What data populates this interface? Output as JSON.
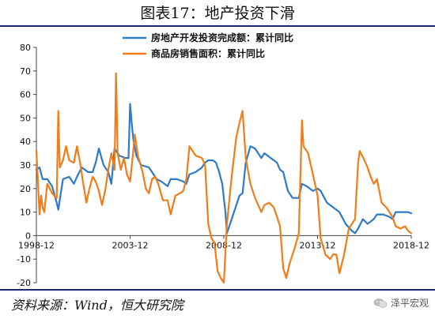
{
  "title": "图表17：地产投资下滑",
  "source": "资料来源：Wind，恒大研究院",
  "watermark": "泽平宏观",
  "chart_data": {
    "type": "line",
    "title": "图表17：地产投资下滑",
    "xlabel": "",
    "ylabel": "",
    "ylim": [
      -20,
      80
    ],
    "yticks": [
      -20,
      -10,
      0,
      10,
      20,
      30,
      40,
      50,
      60,
      70,
      80
    ],
    "xlim": [
      "1998-12",
      "2018-12"
    ],
    "xtick_labels": [
      "1998-12",
      "2003-12",
      "2008-12",
      "2013-12",
      "2018-12"
    ],
    "grid": false,
    "legend": "top-center",
    "series": [
      {
        "name": "房地产开发投资完成额：累计同比",
        "color": "#2f7ac6",
        "points": [
          [
            "1998-12",
            28
          ],
          [
            "1999-02",
            29
          ],
          [
            "1999-04",
            24
          ],
          [
            "1999-07",
            24
          ],
          [
            "1999-10",
            21
          ],
          [
            "2000-01",
            14
          ],
          [
            "2000-02",
            11
          ],
          [
            "2000-05",
            24
          ],
          [
            "2000-09",
            25
          ],
          [
            "2000-12",
            22
          ],
          [
            "2001-02",
            25
          ],
          [
            "2001-05",
            29
          ],
          [
            "2001-09",
            27
          ],
          [
            "2001-12",
            27
          ],
          [
            "2002-02",
            31
          ],
          [
            "2002-04",
            37
          ],
          [
            "2002-07",
            30
          ],
          [
            "2002-10",
            27
          ],
          [
            "2002-12",
            22
          ],
          [
            "2003-02",
            37
          ],
          [
            "2003-05",
            34
          ],
          [
            "2003-09",
            33
          ],
          [
            "2003-11",
            33
          ],
          [
            "2003-12",
            56
          ],
          [
            "2004-01",
            48
          ],
          [
            "2004-02",
            41
          ],
          [
            "2004-04",
            34
          ],
          [
            "2004-07",
            30
          ],
          [
            "2004-12",
            29
          ],
          [
            "2005-02",
            27
          ],
          [
            "2005-05",
            24
          ],
          [
            "2005-08",
            23
          ],
          [
            "2005-12",
            21
          ],
          [
            "2006-02",
            24
          ],
          [
            "2006-06",
            24
          ],
          [
            "2006-10",
            23
          ],
          [
            "2006-12",
            22
          ],
          [
            "2007-02",
            26
          ],
          [
            "2007-06",
            27
          ],
          [
            "2007-10",
            29
          ],
          [
            "2007-12",
            31
          ],
          [
            "2008-02",
            32
          ],
          [
            "2008-05",
            32
          ],
          [
            "2008-07",
            31
          ],
          [
            "2008-09",
            27
          ],
          [
            "2008-11",
            22
          ],
          [
            "2009-01",
            10
          ],
          [
            "2009-02",
            1
          ],
          [
            "2009-04",
            5
          ],
          [
            "2009-07",
            11
          ],
          [
            "2009-10",
            17
          ],
          [
            "2009-12",
            18
          ],
          [
            "2010-02",
            31
          ],
          [
            "2010-05",
            38
          ],
          [
            "2010-08",
            37
          ],
          [
            "2010-12",
            33
          ],
          [
            "2011-02",
            35
          ],
          [
            "2011-06",
            33
          ],
          [
            "2011-10",
            31
          ],
          [
            "2011-12",
            28
          ],
          [
            "2012-02",
            27
          ],
          [
            "2012-05",
            19
          ],
          [
            "2012-08",
            16
          ],
          [
            "2012-12",
            16
          ],
          [
            "2013-02",
            22
          ],
          [
            "2013-05",
            21
          ],
          [
            "2013-09",
            19
          ],
          [
            "2013-12",
            20
          ],
          [
            "2014-02",
            19
          ],
          [
            "2014-06",
            14
          ],
          [
            "2014-10",
            12
          ],
          [
            "2014-12",
            11
          ],
          [
            "2015-02",
            10
          ],
          [
            "2015-06",
            5
          ],
          [
            "2015-10",
            2
          ],
          [
            "2015-12",
            1
          ],
          [
            "2016-02",
            3
          ],
          [
            "2016-05",
            7
          ],
          [
            "2016-08",
            5
          ],
          [
            "2016-12",
            7
          ],
          [
            "2017-02",
            9
          ],
          [
            "2017-06",
            9
          ],
          [
            "2017-10",
            8
          ],
          [
            "2017-12",
            7
          ],
          [
            "2018-02",
            10
          ],
          [
            "2018-05",
            10
          ],
          [
            "2018-08",
            10
          ],
          [
            "2018-10",
            10
          ],
          [
            "2018-12",
            9.5
          ]
        ]
      },
      {
        "name": "商品房销售面积：累计同比",
        "color": "#ee7d1a",
        "points": [
          [
            "1998-12",
            36
          ],
          [
            "1999-02",
            9
          ],
          [
            "1999-03",
            17
          ],
          [
            "1999-04",
            12
          ],
          [
            "1999-05",
            10
          ],
          [
            "1999-07",
            22
          ],
          [
            "1999-10",
            18
          ],
          [
            "2000-01",
            16
          ],
          [
            "2000-02",
            53
          ],
          [
            "2000-03",
            29
          ],
          [
            "2000-05",
            32
          ],
          [
            "2000-07",
            38
          ],
          [
            "2000-09",
            32
          ],
          [
            "2000-12",
            31
          ],
          [
            "2001-02",
            38
          ],
          [
            "2001-04",
            31
          ],
          [
            "2001-06",
            22
          ],
          [
            "2001-08",
            14
          ],
          [
            "2001-10",
            20
          ],
          [
            "2001-12",
            25
          ],
          [
            "2002-02",
            23
          ],
          [
            "2002-04",
            19
          ],
          [
            "2002-06",
            13
          ],
          [
            "2002-08",
            19
          ],
          [
            "2002-10",
            28
          ],
          [
            "2002-12",
            35
          ],
          [
            "2003-02",
            28
          ],
          [
            "2003-03",
            69
          ],
          [
            "2003-04",
            35
          ],
          [
            "2003-06",
            28
          ],
          [
            "2003-08",
            33
          ],
          [
            "2003-10",
            26
          ],
          [
            "2003-12",
            23
          ],
          [
            "2004-02",
            36
          ],
          [
            "2004-03",
            43
          ],
          [
            "2004-05",
            34
          ],
          [
            "2004-08",
            27
          ],
          [
            "2004-10",
            20
          ],
          [
            "2004-12",
            18
          ],
          [
            "2005-02",
            24
          ],
          [
            "2005-04",
            25
          ],
          [
            "2005-06",
            22
          ],
          [
            "2005-09",
            15
          ],
          [
            "2005-12",
            15
          ],
          [
            "2006-02",
            9
          ],
          [
            "2006-05",
            17
          ],
          [
            "2006-08",
            18
          ],
          [
            "2006-10",
            19
          ],
          [
            "2006-12",
            24
          ],
          [
            "2007-02",
            38
          ],
          [
            "2007-06",
            34
          ],
          [
            "2007-10",
            33
          ],
          [
            "2007-12",
            30
          ],
          [
            "2008-02",
            5
          ],
          [
            "2008-04",
            -1
          ],
          [
            "2008-06",
            -3
          ],
          [
            "2008-08",
            -15
          ],
          [
            "2008-10",
            -18
          ],
          [
            "2008-12",
            -20
          ],
          [
            "2009-02",
            5
          ],
          [
            "2009-05",
            25
          ],
          [
            "2009-08",
            42
          ],
          [
            "2009-10",
            48
          ],
          [
            "2009-12",
            53
          ],
          [
            "2010-02",
            33
          ],
          [
            "2010-05",
            22
          ],
          [
            "2010-08",
            16
          ],
          [
            "2010-12",
            10
          ],
          [
            "2011-02",
            13
          ],
          [
            "2011-05",
            14
          ],
          [
            "2011-08",
            12
          ],
          [
            "2011-12",
            4
          ],
          [
            "2012-02",
            -14
          ],
          [
            "2012-04",
            -18
          ],
          [
            "2012-06",
            -12
          ],
          [
            "2012-09",
            -6
          ],
          [
            "2012-12",
            1
          ],
          [
            "2013-02",
            49
          ],
          [
            "2013-03",
            38
          ],
          [
            "2013-06",
            35
          ],
          [
            "2013-09",
            26
          ],
          [
            "2013-12",
            17
          ],
          [
            "2014-02",
            -1
          ],
          [
            "2014-05",
            -8
          ],
          [
            "2014-08",
            -10
          ],
          [
            "2014-10",
            -8
          ],
          [
            "2014-12",
            -8
          ],
          [
            "2015-02",
            -16
          ],
          [
            "2015-05",
            -8
          ],
          [
            "2015-08",
            3
          ],
          [
            "2015-12",
            7
          ],
          [
            "2016-02",
            31
          ],
          [
            "2016-03",
            36
          ],
          [
            "2016-06",
            32
          ],
          [
            "2016-08",
            29
          ],
          [
            "2016-10",
            25
          ],
          [
            "2016-12",
            22
          ],
          [
            "2017-02",
            24
          ],
          [
            "2017-05",
            14
          ],
          [
            "2017-08",
            12
          ],
          [
            "2017-12",
            8
          ],
          [
            "2018-02",
            4
          ],
          [
            "2018-05",
            3
          ],
          [
            "2018-08",
            4
          ],
          [
            "2018-10",
            2
          ],
          [
            "2018-12",
            1
          ]
        ]
      }
    ]
  }
}
